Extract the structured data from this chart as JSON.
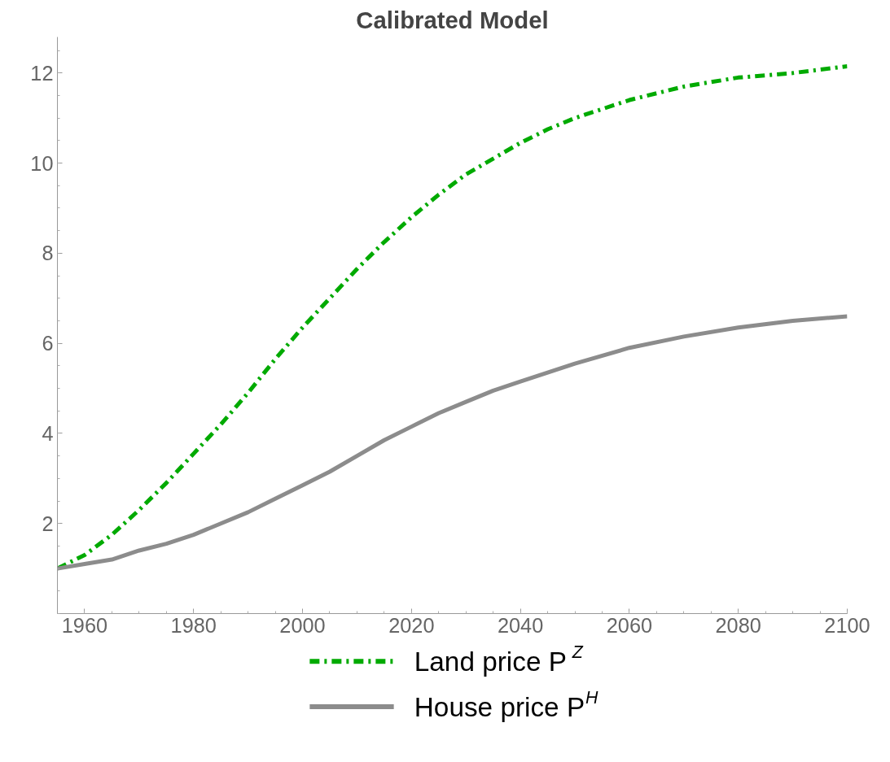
{
  "chart_data": {
    "type": "line",
    "title": "Calibrated Model",
    "x": [
      1955,
      1960,
      1965,
      1970,
      1975,
      1980,
      1985,
      1990,
      1995,
      2000,
      2005,
      2010,
      2015,
      2020,
      2025,
      2030,
      2035,
      2040,
      2045,
      2050,
      2060,
      2070,
      2080,
      2090,
      2100
    ],
    "series": [
      {
        "name": "Land price P$^{Z}$",
        "color": "#00aa00",
        "line_style": "dashdot",
        "values": [
          1.0,
          1.3,
          1.75,
          2.3,
          2.9,
          3.55,
          4.2,
          4.9,
          5.65,
          6.35,
          7.0,
          7.65,
          8.25,
          8.8,
          9.3,
          9.75,
          10.1,
          10.45,
          10.75,
          11.0,
          11.4,
          11.7,
          11.9,
          12.0,
          12.15
        ]
      },
      {
        "name": "House price P$^{H}$",
        "color": "#8c8c8c",
        "line_style": "solid",
        "values": [
          1.0,
          1.1,
          1.2,
          1.4,
          1.55,
          1.75,
          2.0,
          2.25,
          2.55,
          2.85,
          3.15,
          3.5,
          3.85,
          4.15,
          4.45,
          4.7,
          4.95,
          5.15,
          5.35,
          5.55,
          5.9,
          6.15,
          6.35,
          6.5,
          6.6
        ]
      }
    ],
    "xlim": [
      1955,
      2100
    ],
    "ylim": [
      0,
      12.8
    ],
    "xticks": [
      1960,
      1980,
      2000,
      2020,
      2040,
      2060,
      2080,
      2100
    ],
    "yticks": [
      2,
      4,
      6,
      8,
      10,
      12
    ],
    "grid": false,
    "legend": "bottom"
  }
}
